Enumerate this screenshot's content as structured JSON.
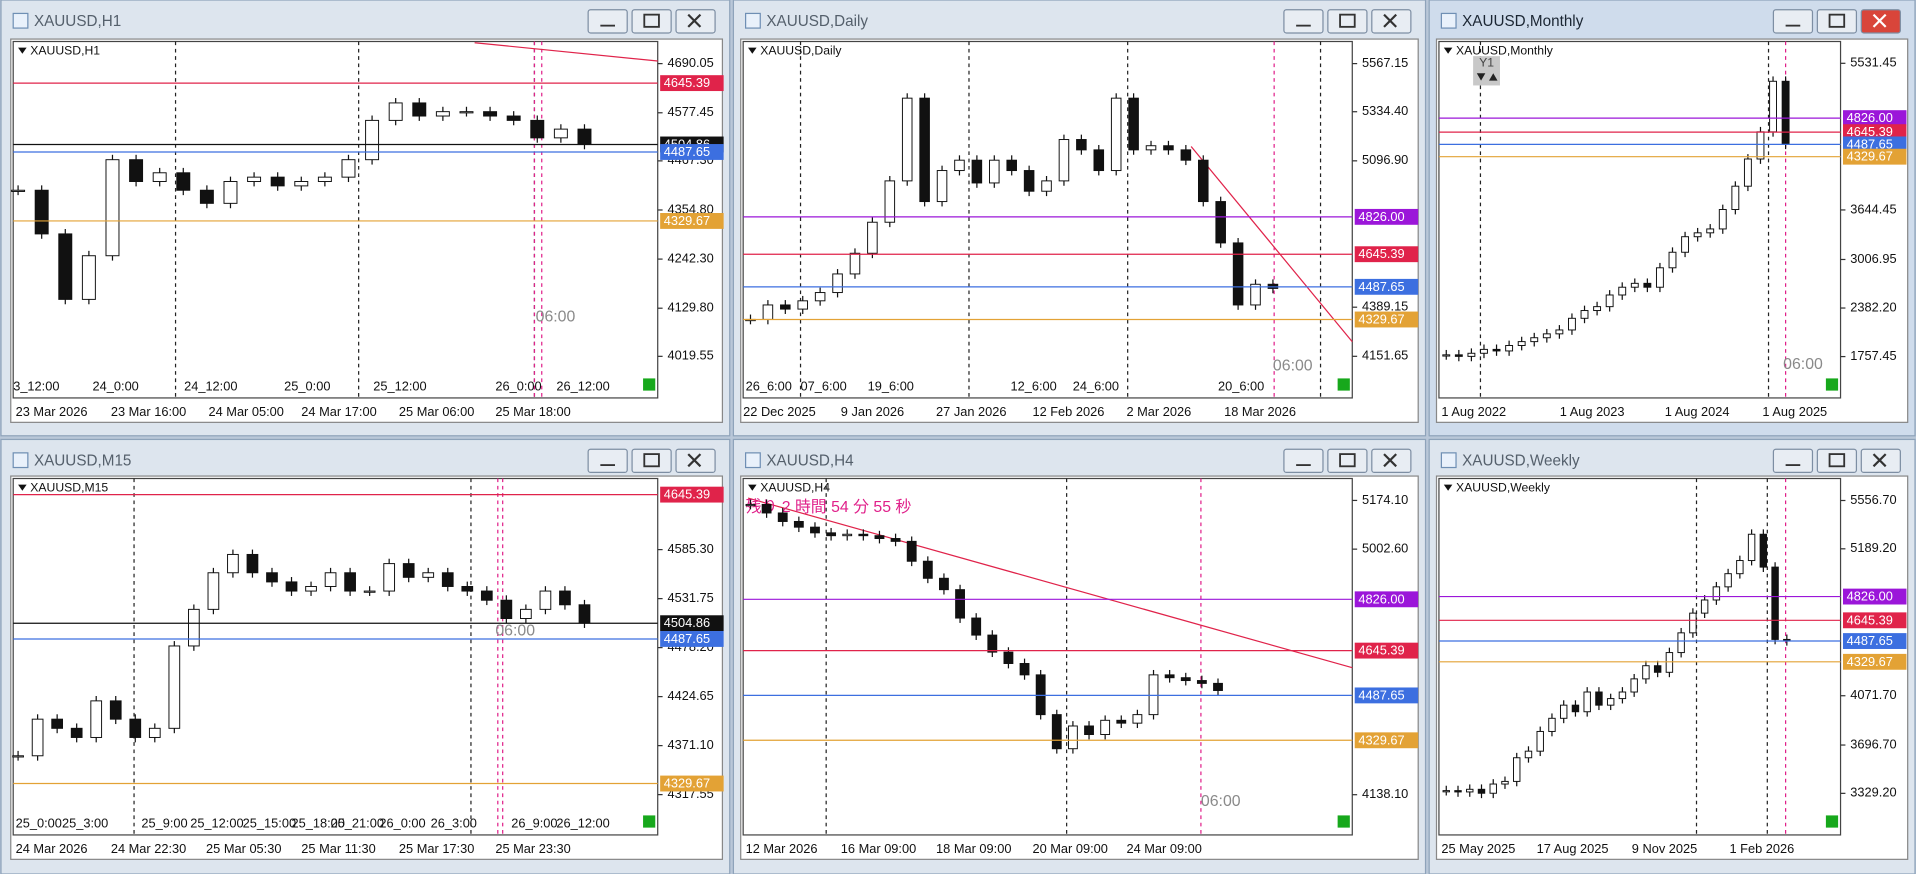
{
  "windows": [
    {
      "title": "XAUUSD,H1",
      "chart_label": "XAUUSD,H1",
      "ylim": [
        3974.6,
        4740.7
      ],
      "yticks": [
        4690.05,
        4577.45,
        {
          "value": 4467.3,
          "label": "4467.30"
        },
        {
          "value": 4354.8,
          "label": "4354.80"
        },
        {
          "value": 4242.3,
          "label": "4242.30"
        },
        {
          "value": 4129.8,
          "label": "4129.80"
        },
        4019.55
      ],
      "levels": [
        {
          "value": 4645.39,
          "color": "#e0234a"
        },
        {
          "value": 4504.86,
          "color": "#111111"
        },
        {
          "value": 4487.65,
          "color": "#3c6fe0"
        },
        {
          "value": 4329.67,
          "color": "#e3a235"
        }
      ],
      "time_labels": [
        "3_12:00",
        "24_0:00",
        "24_12:00",
        "25_0:00",
        "25_12:00",
        "26_0:00",
        "26_12:00"
      ],
      "date_labels": [
        "23 Mar 2026",
        "23 Mar 16:00",
        "24 Mar 05:00",
        "24 Mar 17:00",
        "25 Mar 06:00",
        "25 Mar 18:00"
      ],
      "overlay_time": "06:00",
      "closes": [
        4400,
        4300,
        4150,
        4250,
        4470,
        4420,
        4440,
        4400,
        4370,
        4420,
        4430,
        4410,
        4420,
        4430,
        4470,
        4560,
        4600,
        4570,
        4580,
        4580,
        4570,
        4560,
        4520,
        4540,
        4505
      ]
    },
    {
      "title": "XAUUSD,Daily",
      "chart_label": "XAUUSD,Daily",
      "ylim": [
        4056.6,
        5674
      ],
      "yticks": [
        5567.15,
        {
          "value": 5334.4,
          "label": "5334.40"
        },
        {
          "value": 5096.9,
          "label": "5096.90"
        },
        4389.15,
        4151.65
      ],
      "levels": [
        {
          "value": 4826,
          "label": "4826.00",
          "color": "#9b16d9"
        },
        {
          "value": 4645.39,
          "color": "#e0234a"
        },
        {
          "value": 4487.65,
          "color": "#3c6fe0"
        },
        {
          "value": 4329.67,
          "color": "#e3a235"
        }
      ],
      "time_labels": [
        "26_6:00",
        "07_6:00",
        "19_6:00",
        "12_6:00",
        "24_6:00",
        "20_6:00"
      ],
      "date_labels": [
        "22 Dec 2025",
        "9 Jan 2026",
        "27 Jan 2026",
        "12 Feb 2026",
        "2 Mar 2026",
        "18 Mar 2026"
      ],
      "overlay_time": "06:00",
      "closes": [
        4330,
        4400,
        4380,
        4420,
        4460,
        4550,
        4650,
        4800,
        5000,
        5400,
        4900,
        5050,
        5100,
        4990,
        5100,
        5050,
        4950,
        5000,
        5200,
        5150,
        5050,
        5400,
        5150,
        5170,
        5150,
        5100,
        4900,
        4700,
        4400,
        4500,
        4480
      ]
    },
    {
      "title": "XAUUSD,Monthly",
      "chart_label": "XAUUSD,Monthly",
      "period_button": "Y1",
      "ylim": [
        1508,
        5812
      ],
      "yticks": [
        5531.45,
        3644.45,
        3006.95,
        {
          "value": 2382.2,
          "label": "2382.20"
        },
        1757.45
      ],
      "levels": [
        {
          "value": 4826,
          "label": "4826.00",
          "color": "#9b16d9"
        },
        {
          "value": 4645.39,
          "color": "#e0234a"
        },
        {
          "value": 4487.65,
          "color": "#3c6fe0"
        },
        {
          "value": 4329.67,
          "color": "#e3a235"
        }
      ],
      "time_labels": [],
      "date_labels": [
        "1 Aug 2022",
        "1 Aug 2023",
        "1 Aug 2024",
        "1 Aug 2025"
      ],
      "overlay_time": "06:00",
      "closes": [
        1780,
        1760,
        1800,
        1850,
        1830,
        1900,
        1950,
        2000,
        2050,
        2100,
        2250,
        2350,
        2400,
        2550,
        2650,
        2700,
        2650,
        2900,
        3100,
        3300,
        3350,
        3400,
        3650,
        3950,
        4300,
        4650,
        5300,
        4490
      ]
    },
    {
      "title": "XAUUSD,M15",
      "chart_label": "XAUUSD,M15",
      "ylim": [
        4297.5,
        4663
      ],
      "yticks": [
        {
          "value": 4585.3,
          "label": "4585.30"
        },
        4531.75,
        {
          "value": 4478.2,
          "label": "4478.20"
        },
        4424.65,
        {
          "value": 4371.1,
          "label": "4371.10"
        },
        4317.55
      ],
      "levels": [
        {
          "value": 4645.39,
          "color": "#e0234a"
        },
        {
          "value": 4504.86,
          "color": "#111111"
        },
        {
          "value": 4487.65,
          "color": "#3c6fe0"
        },
        {
          "value": 4329.67,
          "color": "#e3a235"
        }
      ],
      "time_labels": [
        "25_0:00",
        "25_3:00",
        "25_9:00",
        "25_12:00",
        "25_15:00",
        "25_18:00",
        "25_21:00",
        "26_0:00",
        "26_3:00",
        "26_9:00",
        "26_12:00"
      ],
      "date_labels": [
        "24 Mar 2026",
        "24 Mar 22:30",
        "25 Mar 05:30",
        "25 Mar 11:30",
        "25 Mar 17:30",
        "25 Mar 23:30"
      ],
      "overlay_time": "06:00",
      "closes": [
        4360,
        4400,
        4390,
        4380,
        4420,
        4400,
        4380,
        4390,
        4480,
        4520,
        4560,
        4580,
        4560,
        4550,
        4540,
        4545,
        4560,
        4540,
        4540,
        4570,
        4555,
        4560,
        4545,
        4540,
        4530,
        4510,
        4520,
        4540,
        4525,
        4505
      ]
    },
    {
      "title": "XAUUSD,H4",
      "chart_label": "XAUUSD,H4",
      "countdown": "残り 2 時間 54 分 55 秒",
      "ylim": [
        4073.8,
        5251.3
      ],
      "yticks": [
        {
          "value": 5174.1,
          "label": "5174.10"
        },
        {
          "value": 5002.6,
          "label": "5002.60"
        },
        {
          "value": 4138.1,
          "label": "4138.10"
        }
      ],
      "levels": [
        {
          "value": 4826,
          "label": "4826.00",
          "color": "#9b16d9"
        },
        {
          "value": 4645.39,
          "color": "#e0234a"
        },
        {
          "value": 4487.65,
          "color": "#3c6fe0"
        },
        {
          "value": 4329.67,
          "color": "#e3a235"
        }
      ],
      "time_labels": [],
      "date_labels": [
        "12 Mar 2026",
        "16 Mar 09:00",
        "18 Mar 09:00",
        "20 Mar 09:00",
        "24 Mar 09:00"
      ],
      "overlay_time": "06:00",
      "closes": [
        5160,
        5130,
        5100,
        5080,
        5060,
        5050,
        5055,
        5050,
        5040,
        5030,
        4960,
        4900,
        4860,
        4760,
        4700,
        4640,
        4600,
        4560,
        4420,
        4300,
        4380,
        4350,
        4400,
        4390,
        4420,
        4560,
        4550,
        4540,
        4530,
        4505
      ]
    },
    {
      "title": "XAUUSD,Weekly",
      "chart_label": "XAUUSD,Weekly",
      "ylim": [
        3180,
        5724
      ],
      "yticks": [
        {
          "value": 5556.7,
          "label": "5556.70"
        },
        {
          "value": 5189.2,
          "label": "5189.20"
        },
        {
          "value": 4071.7,
          "label": "4071.70"
        },
        {
          "value": 3696.7,
          "label": "3696.70"
        },
        {
          "value": 3329.2,
          "label": "3329.20"
        }
      ],
      "levels": [
        {
          "value": 4826,
          "label": "4826.00",
          "color": "#9b16d9"
        },
        {
          "value": 4645.39,
          "color": "#e0234a"
        },
        {
          "value": 4487.65,
          "color": "#3c6fe0"
        },
        {
          "value": 4329.67,
          "color": "#e3a235"
        }
      ],
      "time_labels": [],
      "date_labels": [
        "25 May 2025",
        "17 Aug 2025",
        "9 Nov 2025",
        "1 Feb 2026"
      ],
      "closes": [
        3350,
        3340,
        3360,
        3330,
        3400,
        3420,
        3600,
        3650,
        3800,
        3900,
        4000,
        3950,
        4100,
        4000,
        4050,
        4100,
        4200,
        4300,
        4250,
        4400,
        4550,
        4700,
        4800,
        4900,
        5000,
        5100,
        5300,
        5050,
        4500,
        4490
      ]
    }
  ]
}
